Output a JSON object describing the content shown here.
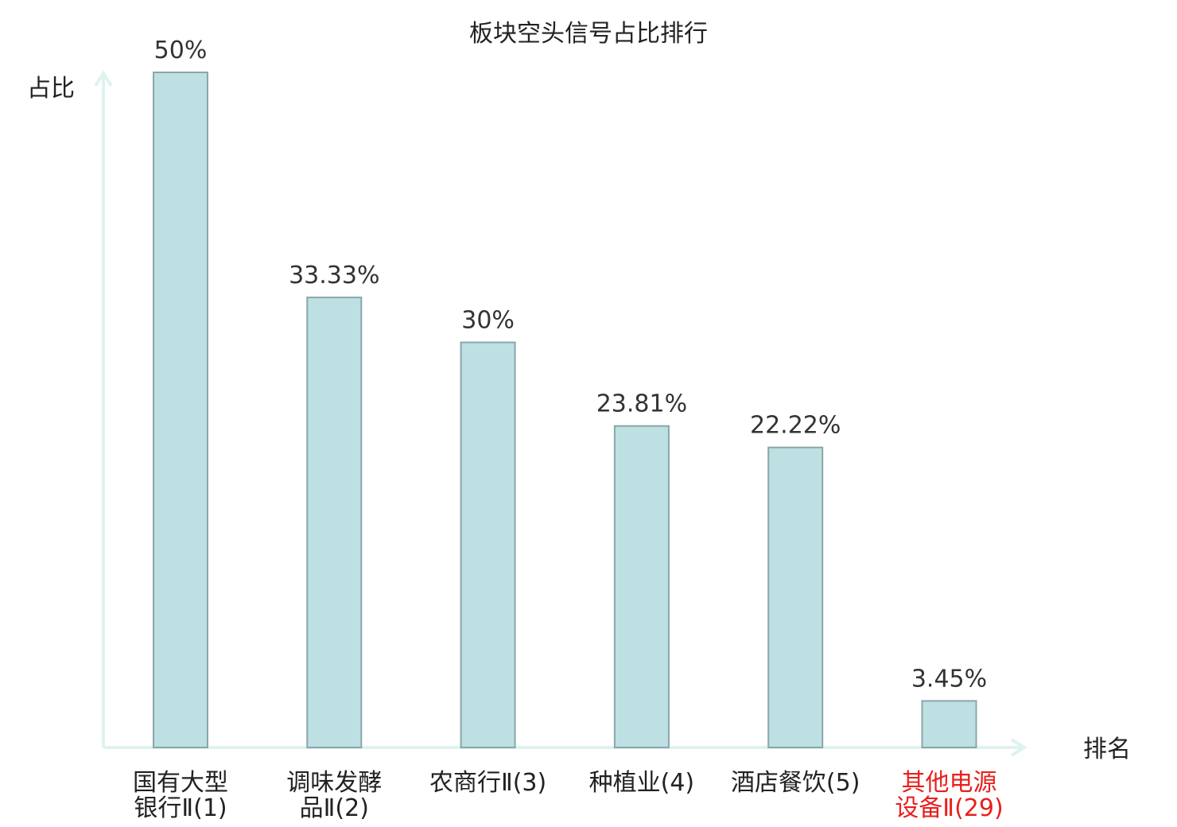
{
  "chart_data": {
    "type": "bar",
    "title": "板块空头信号占比排行",
    "ylabel": "占比",
    "xlabel": "排名",
    "categories": [
      [
        "国有大型",
        "银行Ⅱ(1)"
      ],
      [
        "调味发酵",
        "品Ⅱ(2)"
      ],
      [
        "农商行Ⅱ(3)"
      ],
      [
        "种植业(4)"
      ],
      [
        "酒店餐饮(5)"
      ],
      [
        "其他电源",
        "设备Ⅱ(29)"
      ]
    ],
    "values": [
      50,
      33.33,
      30,
      23.81,
      22.22,
      3.45
    ],
    "value_labels": [
      "50%",
      "33.33%",
      "30%",
      "23.81%",
      "22.22%",
      "3.45%"
    ],
    "highlight_index": 5,
    "ylim": [
      0,
      50
    ],
    "grid": false,
    "colors": {
      "bar_fill": "#bde1e3",
      "bar_stroke": "#8aa6a8",
      "axis": "#e0f2ef",
      "label": "#222222",
      "highlight": "#e8201d"
    }
  }
}
